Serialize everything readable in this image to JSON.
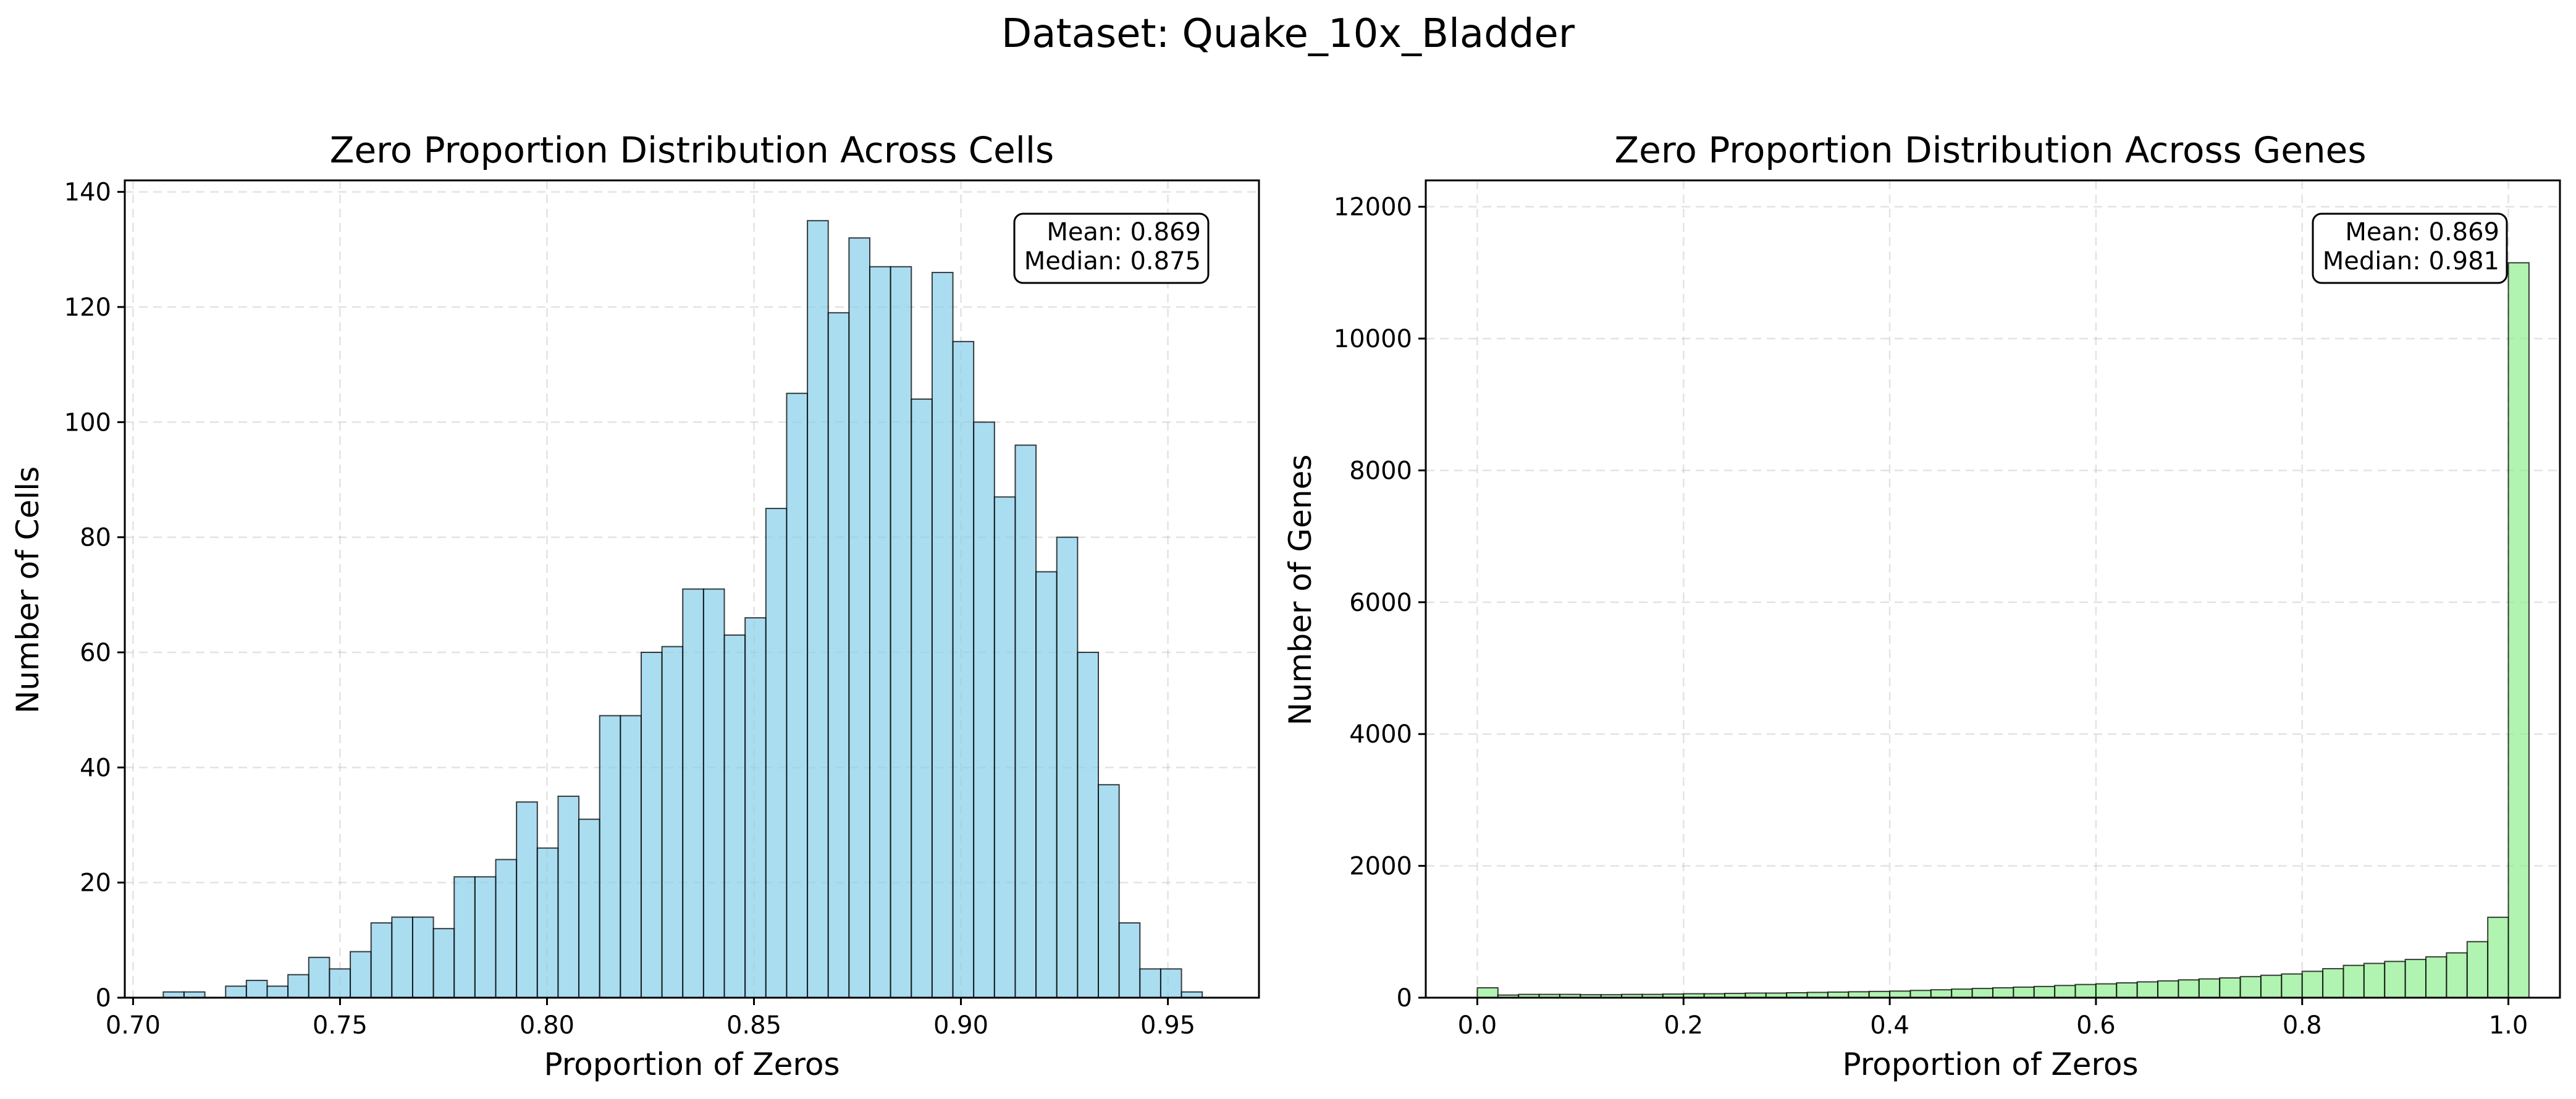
{
  "figure": {
    "suptitle": "Dataset: Quake_10x_Bladder"
  },
  "chart_data": [
    {
      "type": "bar",
      "title": "Zero Proportion Distribution Across Cells",
      "xlabel": "Proportion of Zeros",
      "ylabel": "Number of Cells",
      "xlim": [
        0.698,
        0.972
      ],
      "ylim": [
        0,
        142
      ],
      "xticks": [
        0.7,
        0.75,
        0.8,
        0.85,
        0.9,
        0.95
      ],
      "xtick_labels": [
        "0.70",
        "0.75",
        "0.80",
        "0.85",
        "0.90",
        "0.95"
      ],
      "yticks": [
        0,
        20,
        40,
        60,
        80,
        100,
        120,
        140
      ],
      "ytick_labels": [
        "0",
        "20",
        "40",
        "60",
        "80",
        "100",
        "120",
        "140"
      ],
      "grid": true,
      "bin_start": 0.7073,
      "bin_width": 0.00502,
      "values": [
        1,
        1,
        0,
        2,
        3,
        2,
        4,
        7,
        5,
        8,
        13,
        14,
        14,
        12,
        21,
        21,
        24,
        34,
        26,
        35,
        31,
        49,
        49,
        60,
        61,
        71,
        71,
        63,
        66,
        85,
        105,
        135,
        119,
        132,
        127,
        127,
        104,
        126,
        114,
        100,
        87,
        96,
        74,
        80,
        60,
        37,
        13,
        5,
        5,
        1
      ],
      "bar_color": "#87CEEB",
      "stats_text": [
        "Mean: 0.869",
        "Median: 0.875"
      ]
    },
    {
      "type": "bar",
      "title": "Zero Proportion Distribution Across Genes",
      "xlabel": "Proportion of Zeros",
      "ylabel": "Number of Genes",
      "xlim": [
        -0.05,
        1.05
      ],
      "ylim": [
        0,
        12400
      ],
      "xticks": [
        0.0,
        0.2,
        0.4,
        0.6,
        0.8,
        1.0
      ],
      "xtick_labels": [
        "0.0",
        "0.2",
        "0.4",
        "0.6",
        "0.8",
        "1.0"
      ],
      "yticks": [
        0,
        2000,
        4000,
        6000,
        8000,
        10000,
        12000
      ],
      "ytick_labels": [
        "0",
        "2000",
        "4000",
        "6000",
        "8000",
        "10000",
        "12000"
      ],
      "grid": true,
      "bin_start": 0.0,
      "bin_width": 0.02,
      "values": [
        150,
        40,
        50,
        50,
        50,
        45,
        45,
        50,
        50,
        55,
        60,
        60,
        65,
        70,
        70,
        75,
        80,
        85,
        90,
        95,
        100,
        110,
        120,
        130,
        140,
        150,
        160,
        170,
        185,
        200,
        210,
        225,
        240,
        255,
        270,
        285,
        300,
        320,
        340,
        360,
        400,
        440,
        490,
        520,
        550,
        580,
        620,
        680,
        850,
        1220,
        11150
      ],
      "bar_color": "#90EE90",
      "stats_text": [
        "Mean: 0.869",
        "Median: 0.981"
      ]
    }
  ]
}
